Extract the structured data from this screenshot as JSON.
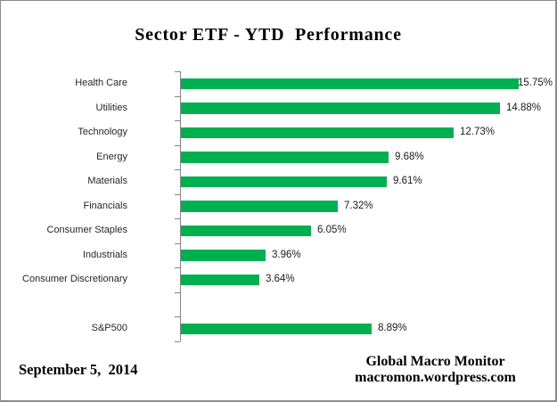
{
  "window": {
    "background": "#ffffff",
    "border_color": "#8c8c8c"
  },
  "title": "Sector ETF - YTD  Performance",
  "chart_data": {
    "type": "bar",
    "orientation": "horizontal",
    "title": "Sector ETF - YTD  Performance",
    "categories": [
      "Health Care",
      "Utilities",
      "Technology",
      "Energy",
      "Materials",
      "Financials",
      "Consumer Staples",
      "Industrials",
      "Consumer Discretionary",
      "S&P500"
    ],
    "values": [
      15.75,
      14.88,
      12.73,
      9.68,
      9.61,
      7.32,
      6.05,
      3.96,
      3.64,
      8.89
    ],
    "value_labels": [
      "15.75%",
      "14.88%",
      "12.73%",
      "9.68%",
      "9.61%",
      "7.32%",
      "6.05%",
      "3.96%",
      "3.64%",
      "8.89%"
    ],
    "gap_before_index": 9,
    "xlabel": "",
    "ylabel": "",
    "xlim": [
      0,
      17.5
    ],
    "grid": false,
    "legend": false,
    "bar_color": "#00B050",
    "axis_color": "#848484"
  },
  "footer": {
    "date": "September 5,  2014",
    "source_line1": "Global Macro Monitor",
    "source_line2": "macromon.wordpress.com"
  }
}
